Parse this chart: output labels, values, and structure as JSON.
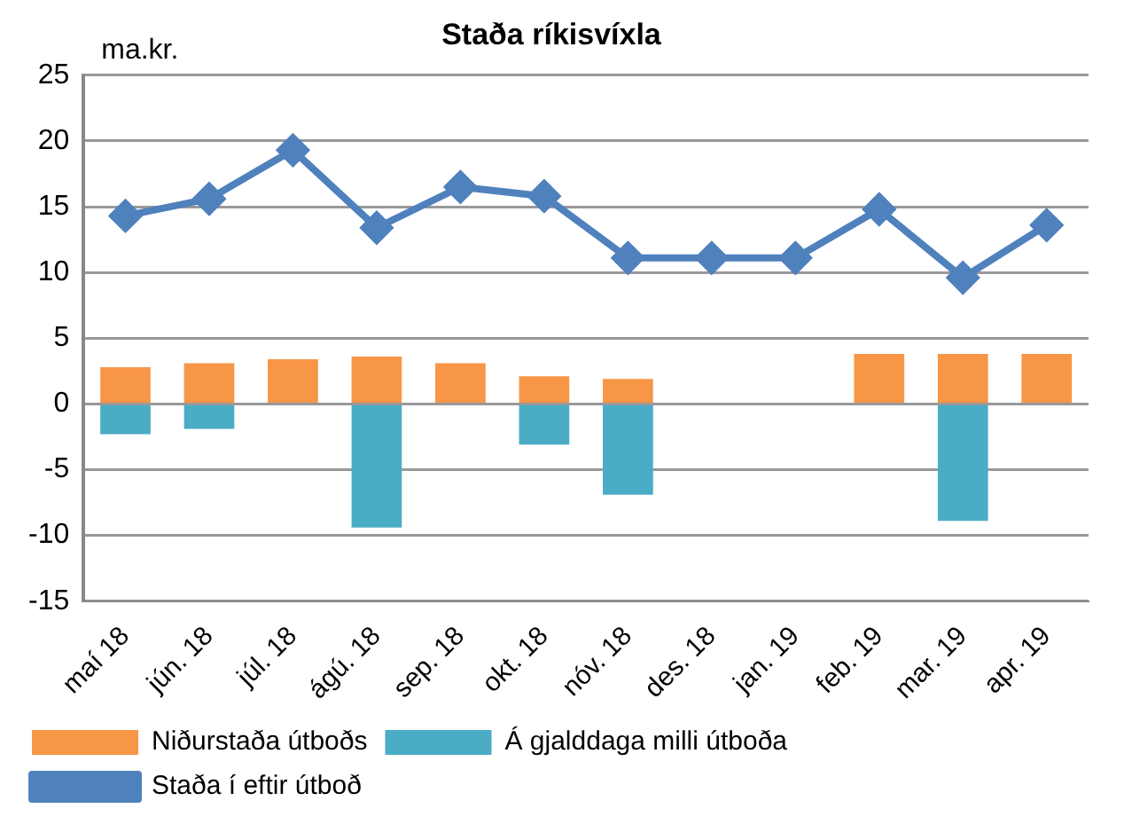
{
  "chart_data": {
    "type": "bar",
    "title": "Staða ríkisvíxla",
    "ylabel": "ma.kr.",
    "categories": [
      "maí 18",
      "jún. 18",
      "júl. 18",
      "ágú. 18",
      "sep. 18",
      "okt. 18",
      "nóv. 18",
      "des. 18",
      "jan. 19",
      "feb. 19",
      "mar. 19",
      "apr. 19"
    ],
    "series": [
      {
        "name": "Niðurstaða útboðs",
        "color": "#f79646",
        "values": [
          2.8,
          3.1,
          3.4,
          3.6,
          3.1,
          2.1,
          1.9,
          null,
          null,
          3.8,
          3.8,
          3.8
        ]
      },
      {
        "name": "Á gjalddaga milli útboða",
        "color": "#4bacc6",
        "values": [
          -2.3,
          -1.9,
          null,
          -9.4,
          null,
          -3.1,
          -6.9,
          null,
          null,
          null,
          -8.9,
          null
        ]
      },
      {
        "name": "Staða í eftir útboð",
        "type": "line",
        "color": "#4f81bd",
        "values": [
          14.3,
          15.6,
          19.3,
          13.4,
          16.5,
          15.8,
          11.1,
          11.1,
          11.1,
          14.8,
          9.6,
          13.6
        ]
      }
    ],
    "stacked": true,
    "ylim": [
      -15,
      25
    ],
    "yticks": [
      -15,
      -10,
      -5,
      0,
      5,
      10,
      15,
      20,
      25
    ],
    "grid": "y",
    "legend": "bottom",
    "marker": "diamond",
    "line_style": "solid"
  }
}
